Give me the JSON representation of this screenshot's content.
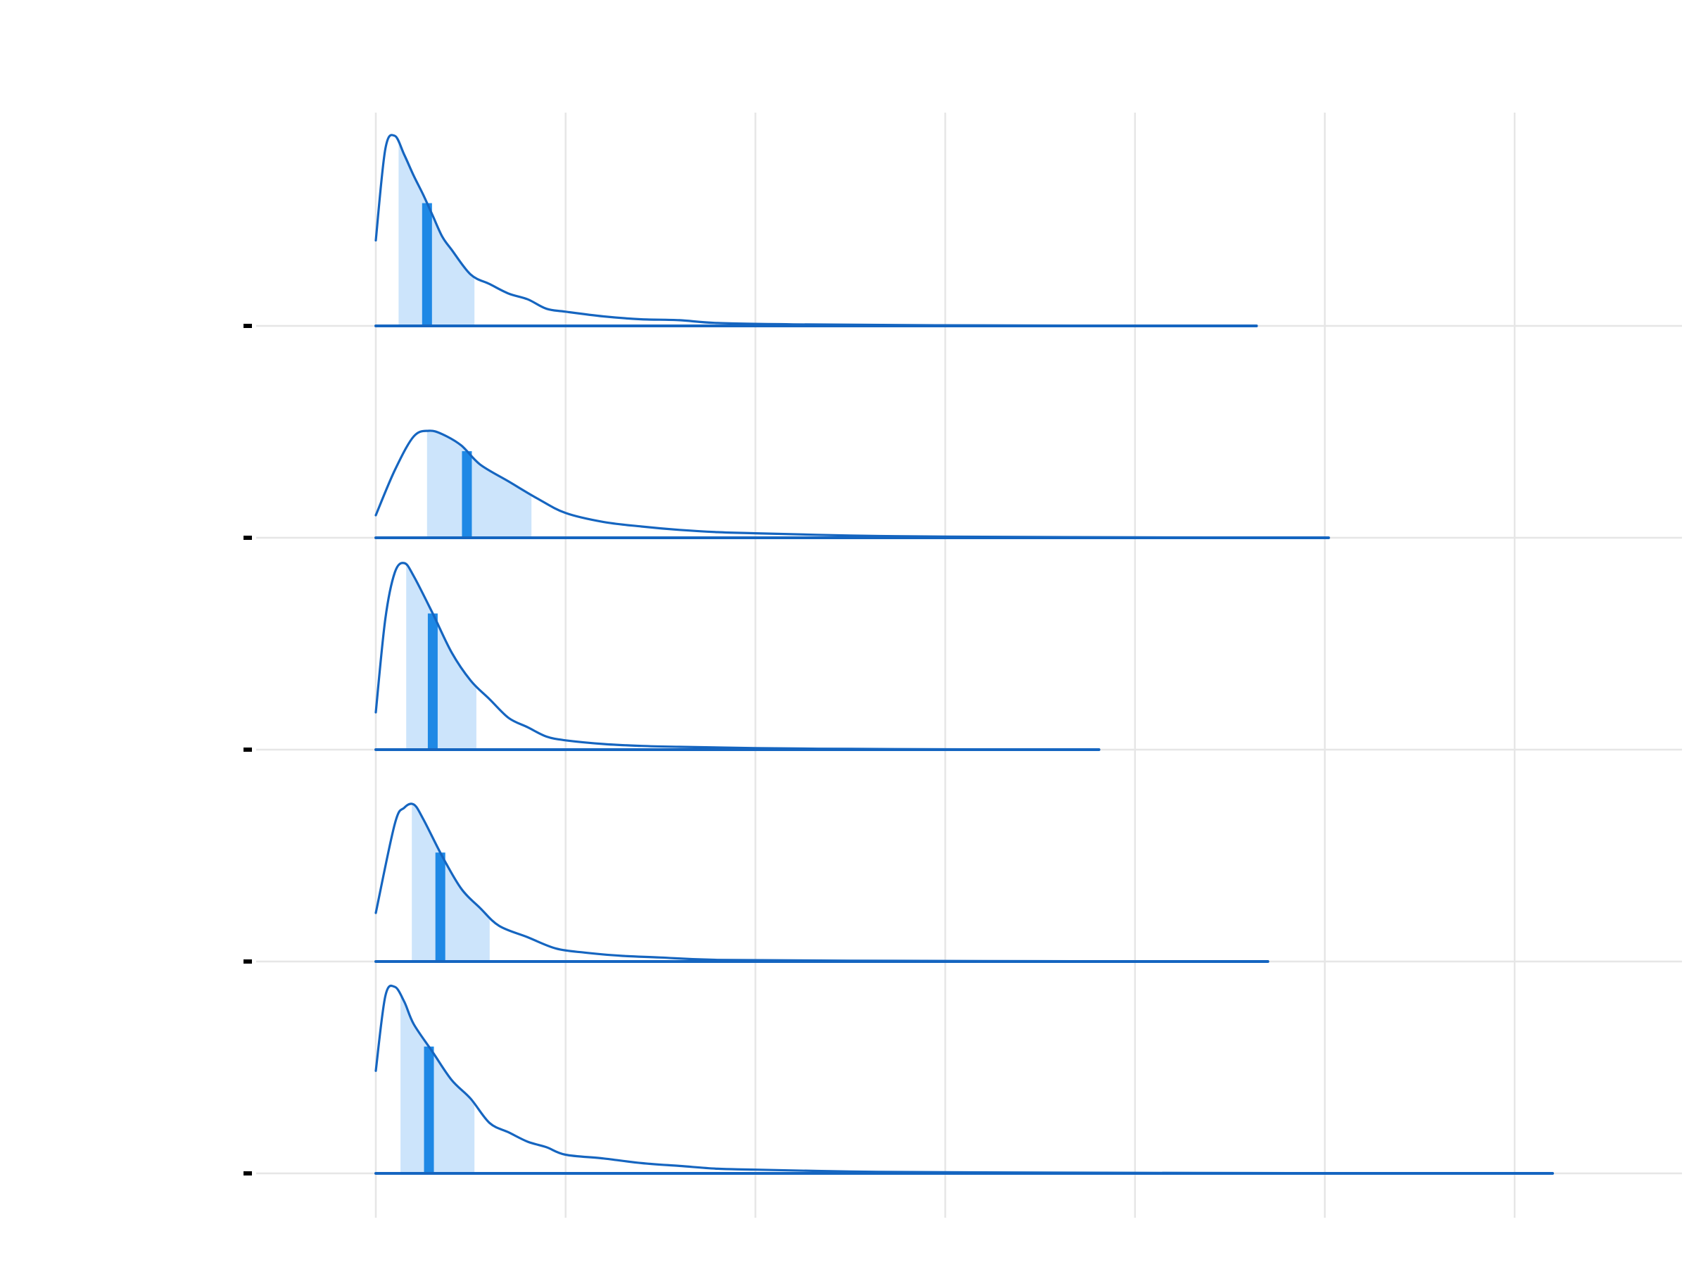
{
  "chart_data": {
    "type": "area",
    "subtype": "ridgeline-density",
    "title": "",
    "xlabel": "",
    "ylabel": "",
    "xlim": [
      -0.7,
      7.2
    ],
    "x_gridlines": [
      0,
      1,
      2,
      3,
      4,
      5,
      6
    ],
    "grid": true,
    "legend": "none",
    "tick_labels_visible": false,
    "colors": {
      "line": "#1565c0",
      "interval": "#cce4fb",
      "median": "#1e88e5",
      "grid": "#e6e6e6",
      "tick": "#000000"
    },
    "series": [
      {
        "row": 1,
        "x_range": [
          0,
          4.64
        ],
        "median": 0.27,
        "interval": [
          0.12,
          0.52
        ],
        "density": [
          [
            0,
            0.45
          ],
          [
            0.05,
            0.93
          ],
          [
            0.1,
            1.0
          ],
          [
            0.15,
            0.9
          ],
          [
            0.2,
            0.79
          ],
          [
            0.25,
            0.69
          ],
          [
            0.3,
            0.58
          ],
          [
            0.35,
            0.47
          ],
          [
            0.4,
            0.4
          ],
          [
            0.5,
            0.27
          ],
          [
            0.6,
            0.22
          ],
          [
            0.7,
            0.17
          ],
          [
            0.8,
            0.14
          ],
          [
            0.9,
            0.09
          ],
          [
            1.0,
            0.075
          ],
          [
            1.2,
            0.05
          ],
          [
            1.4,
            0.035
          ],
          [
            1.6,
            0.03
          ],
          [
            1.8,
            0.015
          ],
          [
            2.2,
            0.008
          ],
          [
            2.8,
            0.004
          ],
          [
            3.5,
            0.002
          ],
          [
            4.64,
            0.0
          ]
        ]
      },
      {
        "row": 2,
        "x_range": [
          0,
          5.02
        ],
        "median": 0.48,
        "interval": [
          0.27,
          0.82
        ],
        "density": [
          [
            0,
            0.2
          ],
          [
            0.1,
            0.6
          ],
          [
            0.2,
            0.9
          ],
          [
            0.28,
            0.95
          ],
          [
            0.35,
            0.92
          ],
          [
            0.45,
            0.82
          ],
          [
            0.55,
            0.65
          ],
          [
            0.7,
            0.5
          ],
          [
            0.85,
            0.35
          ],
          [
            1.0,
            0.22
          ],
          [
            1.2,
            0.14
          ],
          [
            1.4,
            0.1
          ],
          [
            1.6,
            0.07
          ],
          [
            1.8,
            0.05
          ],
          [
            2.0,
            0.04
          ],
          [
            2.5,
            0.02
          ],
          [
            3.0,
            0.01
          ],
          [
            4.0,
            0.004
          ],
          [
            5.02,
            0.0
          ]
        ]
      },
      {
        "row": 3,
        "x_range": [
          0,
          3.81
        ],
        "median": 0.3,
        "interval": [
          0.16,
          0.53
        ],
        "density": [
          [
            0,
            0.2
          ],
          [
            0.05,
            0.7
          ],
          [
            0.1,
            0.95
          ],
          [
            0.15,
            1.0
          ],
          [
            0.2,
            0.93
          ],
          [
            0.3,
            0.73
          ],
          [
            0.4,
            0.52
          ],
          [
            0.5,
            0.37
          ],
          [
            0.6,
            0.27
          ],
          [
            0.7,
            0.17
          ],
          [
            0.8,
            0.12
          ],
          [
            0.9,
            0.07
          ],
          [
            1.0,
            0.05
          ],
          [
            1.2,
            0.03
          ],
          [
            1.4,
            0.02
          ],
          [
            1.6,
            0.015
          ],
          [
            2.0,
            0.008
          ],
          [
            2.5,
            0.004
          ],
          [
            3.0,
            0.002
          ],
          [
            3.81,
            0.0
          ]
        ]
      },
      {
        "row": 4,
        "x_range": [
          0,
          4.7
        ],
        "median": 0.34,
        "interval": [
          0.19,
          0.6
        ],
        "density": [
          [
            0,
            0.3
          ],
          [
            0.1,
            0.85
          ],
          [
            0.15,
            0.95
          ],
          [
            0.2,
            0.97
          ],
          [
            0.25,
            0.88
          ],
          [
            0.35,
            0.65
          ],
          [
            0.45,
            0.45
          ],
          [
            0.55,
            0.33
          ],
          [
            0.65,
            0.22
          ],
          [
            0.8,
            0.15
          ],
          [
            0.95,
            0.08
          ],
          [
            1.1,
            0.055
          ],
          [
            1.3,
            0.035
          ],
          [
            1.5,
            0.025
          ],
          [
            1.8,
            0.01
          ],
          [
            2.5,
            0.005
          ],
          [
            3.5,
            0.002
          ],
          [
            4.7,
            0.0
          ]
        ]
      },
      {
        "row": 5,
        "x_range": [
          0,
          6.2
        ],
        "median": 0.28,
        "interval": [
          0.13,
          0.52
        ],
        "density": [
          [
            0,
            0.55
          ],
          [
            0.05,
            0.95
          ],
          [
            0.1,
            1.0
          ],
          [
            0.15,
            0.92
          ],
          [
            0.2,
            0.8
          ],
          [
            0.3,
            0.65
          ],
          [
            0.4,
            0.5
          ],
          [
            0.5,
            0.4
          ],
          [
            0.6,
            0.27
          ],
          [
            0.7,
            0.22
          ],
          [
            0.8,
            0.17
          ],
          [
            0.9,
            0.14
          ],
          [
            1.0,
            0.1
          ],
          [
            1.2,
            0.08
          ],
          [
            1.4,
            0.055
          ],
          [
            1.6,
            0.04
          ],
          [
            1.8,
            0.025
          ],
          [
            2.0,
            0.02
          ],
          [
            2.5,
            0.01
          ],
          [
            3.0,
            0.006
          ],
          [
            4.0,
            0.003
          ],
          [
            5.0,
            0.001
          ],
          [
            6.2,
            0.0
          ]
        ]
      }
    ]
  }
}
